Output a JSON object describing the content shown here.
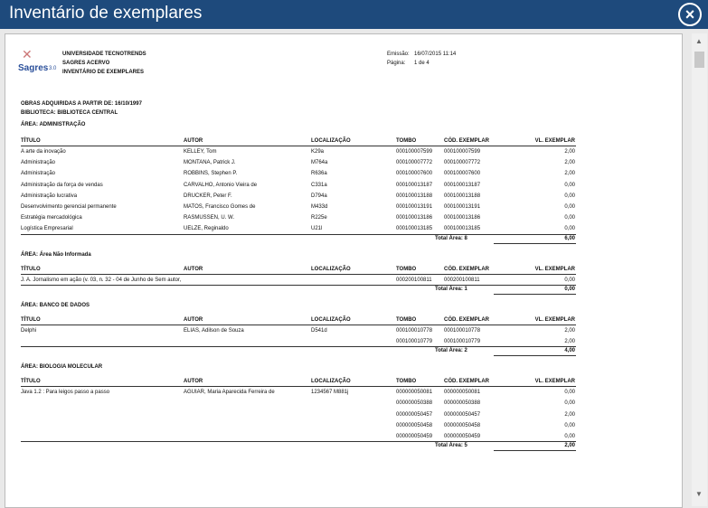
{
  "window": {
    "title": "Inventário de exemplares"
  },
  "header": {
    "logo": "Sagres",
    "logo_version": "3.0",
    "lines": [
      "UNIVERSIDADE TECNOTRENDS",
      "SAGRES ACERVO",
      "INVENTÁRIO DE EXEMPLARES"
    ],
    "emission_label": "Emissão:",
    "emission_value": "16/07/2015 11:14",
    "page_label": "Página:",
    "page_value": "1 de 4"
  },
  "filters": [
    "OBRAS ADQUIRIDAS A PARTIR DE: 16/10/1997",
    "BIBLIOTECA: BIBLIOTECA CENTRAL"
  ],
  "columns": [
    "TÍTULO",
    "AUTOR",
    "LOCALIZAÇÃO",
    "TOMBO",
    "CÓD. EXEMPLAR",
    "VL. EXEMPLAR"
  ],
  "areas": [
    {
      "title": "ÁREA: ADMINISTRAÇÃO",
      "rows": [
        [
          "A arte da inovação",
          "KELLEY, Tom",
          "K29a",
          "000100007599",
          "000100007599",
          "2,00"
        ],
        [
          "Administração",
          "MONTANA, Patrick J.",
          "M764a",
          "000100007772",
          "000100007772",
          "2,00"
        ],
        [
          "Administração",
          "ROBBINS, Stephen P.",
          "R636a",
          "000100007600",
          "000100007600",
          "2,00"
        ],
        [
          "Administração da força de vendas",
          "CARVALHO, Antonio Vieira de",
          "C331a",
          "000100013187",
          "000100013187",
          "0,00"
        ],
        [
          "Administração lucrativa",
          "DRUCKER, Peter F.",
          "D794a",
          "000100013188",
          "000100013188",
          "0,00"
        ],
        [
          "Desenvolvimento gerencial permanente",
          "MATOS, Francisco Gomes de",
          "M433d",
          "000100013191",
          "000100013191",
          "0,00"
        ],
        [
          "Estratégia mercadológica",
          "RASMUSSEN, U. W.",
          "R225e",
          "000100013186",
          "000100013186",
          "0,00"
        ],
        [
          "Logística Empresarial",
          "UELZE, Reginaldo",
          "U21l",
          "000100013185",
          "000100013185",
          "0,00"
        ]
      ],
      "total_label": "Total Área: 8",
      "total_value": "6,00"
    },
    {
      "title": "ÁREA: Área Não Informada",
      "rows": [
        [
          "J. A. Jornalismo em ação (v. 03, n. 32 - 04 de Junho de Sem autor,",
          "",
          "",
          "000200100811",
          "000200100811",
          "0,00"
        ]
      ],
      "total_label": "Total Área: 1",
      "total_value": "0,00"
    },
    {
      "title": "ÁREA: BANCO DE DADOS",
      "rows": [
        [
          "Delphi",
          "ELIAS, Adilson de Souza",
          "D541d",
          "000100010778",
          "000100010778",
          "2,00"
        ],
        [
          "",
          "",
          "",
          "000100010779",
          "000100010779",
          "2,00"
        ]
      ],
      "total_label": "Total Área: 2",
      "total_value": "4,00"
    },
    {
      "title": "ÁREA: BIOLOGIA MOLECULAR",
      "rows": [
        [
          "Java 1.2 : Para leigos passo a passo",
          "AGUIAR, Maria Aparecida Ferreira de",
          "1234567 M881j",
          "000000050081",
          "000000050081",
          "0,00"
        ],
        [
          "",
          "",
          "",
          "000000050388",
          "000000050388",
          "0,00"
        ],
        [
          "",
          "",
          "",
          "000000050457",
          "000000050457",
          "2,00"
        ],
        [
          "",
          "",
          "",
          "000000050458",
          "000000050458",
          "0,00"
        ],
        [
          "",
          "",
          "",
          "000000050459",
          "000000050459",
          "0,00"
        ]
      ],
      "total_label": "Total Área: 5",
      "total_value": "2,00"
    }
  ]
}
